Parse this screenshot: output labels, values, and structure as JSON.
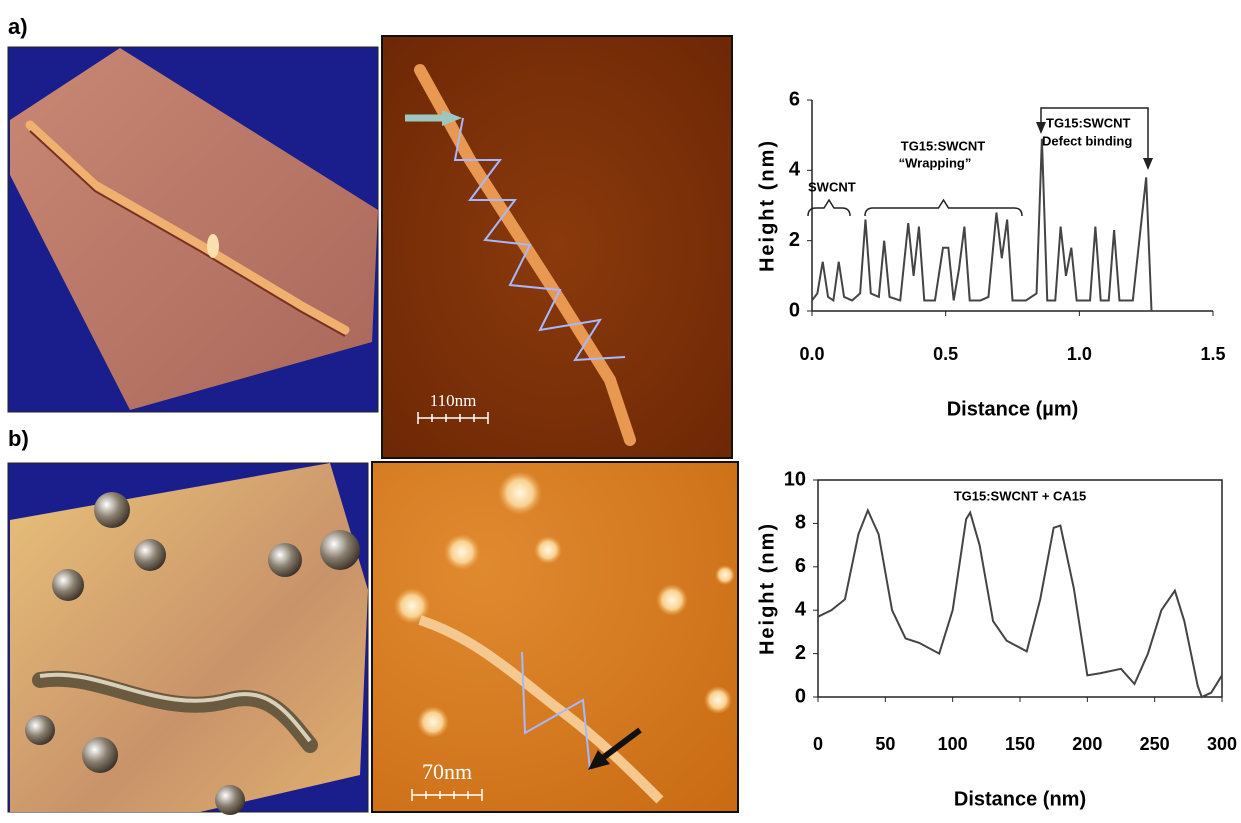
{
  "panel_labels": [
    "a)",
    "b)"
  ],
  "scale_bars": [
    "110nm",
    "70nm"
  ],
  "chart_data": [
    {
      "type": "line",
      "xlabel": "Distance (µm)",
      "ylabel": "Height (nm)",
      "color": "#444444",
      "annotations": [
        "SWCNT",
        "TG15:SWCNT",
        "“Wrapping”",
        "TG15:SWCNT",
        "Defect binding"
      ],
      "x": [
        0,
        0.02,
        0.04,
        0.06,
        0.08,
        0.1,
        0.12,
        0.15,
        0.18,
        0.2,
        0.22,
        0.25,
        0.27,
        0.29,
        0.33,
        0.36,
        0.38,
        0.4,
        0.42,
        0.46,
        0.49,
        0.51,
        0.53,
        0.55,
        0.57,
        0.59,
        0.63,
        0.66,
        0.69,
        0.71,
        0.73,
        0.75,
        0.8,
        0.84,
        0.86,
        0.88,
        0.91,
        0.93,
        0.95,
        0.97,
        0.99,
        1.04,
        1.06,
        1.08,
        1.11,
        1.13,
        1.15,
        1.2,
        1.25,
        1.27
      ],
      "values": [
        0.3,
        0.5,
        1.4,
        0.4,
        0.3,
        1.4,
        0.4,
        0.3,
        0.5,
        2.6,
        0.5,
        0.4,
        2,
        0.4,
        0.3,
        2.5,
        1,
        2.4,
        0.3,
        0.3,
        1.8,
        1.8,
        0.3,
        1.2,
        2.4,
        0.3,
        0.3,
        0.4,
        2.8,
        1.5,
        2.6,
        0.3,
        0.3,
        0.5,
        4.9,
        0.3,
        0.3,
        2.4,
        1,
        1.8,
        0.3,
        0.3,
        2.4,
        0.3,
        0.3,
        2.3,
        0.3,
        0.3,
        3.8,
        0
      ],
      "xlim": [
        0,
        1.5
      ],
      "ylim": [
        0,
        6
      ],
      "xticks": [
        {
          "value": 0,
          "label": "0.0"
        },
        {
          "value": 0.5,
          "label": "0.5"
        },
        {
          "value": 1,
          "label": "1.0"
        },
        {
          "value": 1.5,
          "label": "1.5"
        }
      ],
      "yticks": [
        0,
        2,
        4,
        6
      ],
      "frame": false
    },
    {
      "type": "line",
      "xlabel": "Distance (nm)",
      "ylabel": "Height (nm)",
      "color": "#444444",
      "annotations": [
        "TG15:SWCNT + CA15"
      ],
      "x": [
        0,
        10,
        20,
        30,
        37,
        45,
        55,
        65,
        75,
        90,
        100,
        110,
        113,
        120,
        130,
        140,
        155,
        165,
        175,
        180,
        190,
        200,
        210,
        225,
        235,
        245,
        255,
        265,
        272,
        282,
        285,
        292,
        300
      ],
      "values": [
        3.7,
        4,
        4.5,
        7.5,
        8.6,
        7.5,
        4,
        2.7,
        2.5,
        2,
        4,
        8.2,
        8.5,
        7,
        3.5,
        2.6,
        2.1,
        4.5,
        7.8,
        7.9,
        5,
        1,
        1.1,
        1.3,
        0.6,
        2,
        4,
        4.9,
        3.5,
        0.5,
        0,
        0.2,
        1
      ],
      "xlim": [
        0,
        300
      ],
      "ylim": [
        0,
        10
      ],
      "xticks": [
        0,
        50,
        100,
        150,
        200,
        250,
        300
      ],
      "yticks": [
        0,
        2,
        4,
        6,
        8,
        10
      ],
      "frame": true
    }
  ]
}
